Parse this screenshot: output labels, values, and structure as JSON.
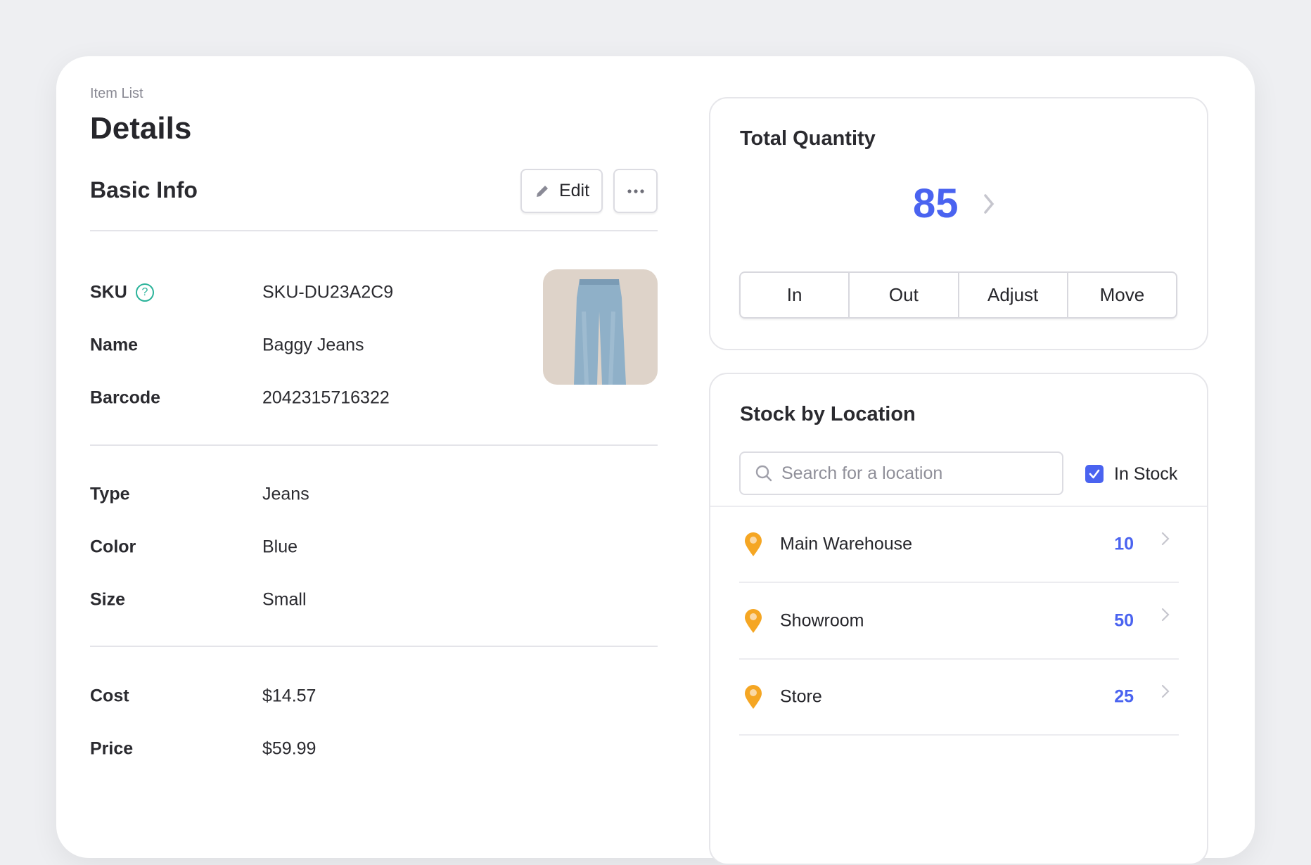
{
  "breadcrumb": "Item List",
  "page_title": "Details",
  "basic_info": {
    "title": "Basic Info",
    "edit_label": "Edit",
    "more_icon": "ellipsis-icon",
    "fields_group1": [
      {
        "label": "SKU",
        "value": "SKU-DU23A2C9",
        "help_icon": true
      },
      {
        "label": "Name",
        "value": "Baggy Jeans"
      },
      {
        "label": "Barcode",
        "value": "2042315716322"
      }
    ],
    "fields_group2": [
      {
        "label": "Type",
        "value": "Jeans"
      },
      {
        "label": "Color",
        "value": "Blue"
      },
      {
        "label": "Size",
        "value": "Small"
      }
    ],
    "fields_group3": [
      {
        "label": "Cost",
        "value": "$14.57"
      },
      {
        "label": "Price",
        "value": "$59.99"
      }
    ]
  },
  "total_quantity": {
    "title": "Total Quantity",
    "value": "85",
    "actions": [
      "In",
      "Out",
      "Adjust",
      "Move"
    ]
  },
  "stock_by_location": {
    "title": "Stock by Location",
    "search_placeholder": "Search for a location",
    "search_value": "",
    "in_stock_label": "In Stock",
    "in_stock_checked": true,
    "locations": [
      {
        "name": "Main Warehouse",
        "qty": "10"
      },
      {
        "name": "Showroom",
        "qty": "50"
      },
      {
        "name": "Store",
        "qty": "25"
      }
    ]
  },
  "colors": {
    "accent": "#4a63f0",
    "pin": "#f5a623",
    "help": "#2bb39a"
  }
}
